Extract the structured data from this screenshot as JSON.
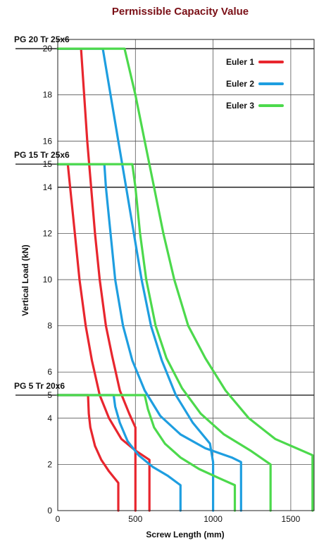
{
  "chart_data": {
    "type": "line",
    "title": "Permissible Capacity Value",
    "xlabel": "Screw Length (mm)",
    "ylabel": "Vertical Load (kN)",
    "xlim": [
      0,
      1650
    ],
    "ylim": [
      0,
      20.4
    ],
    "x_ticks": [
      0,
      500,
      1000,
      1500
    ],
    "y_ticks": [
      0,
      2,
      4,
      5,
      6,
      8,
      10,
      12,
      14,
      15,
      16,
      18,
      20
    ],
    "grid": true,
    "legend_position": "top-right",
    "screw_types": [
      {
        "label": "PG 20 Tr 25x6",
        "capacity": 20
      },
      {
        "label": "PG 15 Tr 25x6",
        "capacity": 15
      },
      {
        "label": "PG 5  Tr 20x6",
        "capacity": 5
      }
    ],
    "series": [
      {
        "name": "Euler 1",
        "color": "#e8262e",
        "screw": "PG 20 Tr 25x6",
        "x": [
          0,
          150,
          170,
          190,
          215,
          240,
          270,
          310,
          350,
          400,
          460,
          500,
          500
        ],
        "y": [
          20,
          20,
          18,
          16,
          14,
          12,
          10,
          8,
          6.7,
          5.2,
          4.2,
          3.6,
          0
        ]
      },
      {
        "name": "Euler 2",
        "color": "#1e9ee0",
        "screw": "PG 20 Tr 25x6",
        "x": [
          0,
          290,
          340,
          390,
          440,
          490,
          540,
          600,
          670,
          760,
          870,
          980,
          1000,
          1000
        ],
        "y": [
          20,
          20,
          18,
          16,
          14,
          12,
          10,
          8,
          6.5,
          5.0,
          3.8,
          2.9,
          2.1,
          0
        ]
      },
      {
        "name": "Euler 3",
        "color": "#4cd94c",
        "screw": "PG 20 Tr 25x6",
        "x": [
          0,
          430,
          500,
          560,
          620,
          680,
          750,
          840,
          950,
          1080,
          1230,
          1400,
          1640,
          1640
        ],
        "y": [
          20,
          20,
          18,
          16,
          14,
          12,
          10,
          8,
          6.6,
          5.2,
          4.0,
          3.1,
          2.4,
          0
        ]
      },
      {
        "name": "Euler 1",
        "color": "#e8262e",
        "screw": "PG 15 Tr 25x6",
        "x": [
          0,
          65,
          80,
          110,
          140,
          180,
          220,
          270,
          330,
          410,
          500,
          590,
          590
        ],
        "y": [
          15,
          15,
          14,
          12,
          10,
          8,
          6.5,
          5,
          4,
          3.1,
          2.6,
          2.2,
          0
        ]
      },
      {
        "name": "Euler 2",
        "color": "#1e9ee0",
        "screw": "PG 15 Tr 25x6",
        "x": [
          0,
          300,
          310,
          340,
          370,
          420,
          480,
          560,
          660,
          790,
          950,
          1120,
          1180,
          1180
        ],
        "y": [
          15,
          15,
          14,
          12,
          10,
          8,
          6.5,
          5.2,
          4.1,
          3.3,
          2.7,
          2.3,
          2.1,
          0
        ]
      },
      {
        "name": "Euler 3",
        "color": "#4cd94c",
        "screw": "PG 15 Tr 25x6",
        "x": [
          0,
          480,
          500,
          530,
          570,
          630,
          700,
          800,
          920,
          1070,
          1240,
          1370,
          1370
        ],
        "y": [
          15,
          15,
          14,
          12,
          10,
          8,
          6.6,
          5.3,
          4.2,
          3.3,
          2.6,
          2.0,
          0
        ]
      },
      {
        "name": "Euler 1",
        "color": "#e8262e",
        "screw": "PG 5  Tr 20x6",
        "x": [
          0,
          195,
          200,
          210,
          240,
          280,
          330,
          390,
          390
        ],
        "y": [
          5,
          5,
          4.2,
          3.6,
          2.8,
          2.2,
          1.7,
          1.2,
          0
        ]
      },
      {
        "name": "Euler 2",
        "color": "#1e9ee0",
        "screw": "PG 5  Tr 20x6",
        "x": [
          0,
          360,
          370,
          400,
          450,
          520,
          610,
          710,
          790,
          790
        ],
        "y": [
          5,
          5,
          4.5,
          3.8,
          3.0,
          2.4,
          1.9,
          1.5,
          1.1,
          0
        ]
      },
      {
        "name": "Euler 3",
        "color": "#4cd94c",
        "screw": "PG 5  Tr 20x6",
        "x": [
          0,
          560,
          580,
          620,
          690,
          790,
          910,
          1040,
          1140,
          1140
        ],
        "y": [
          5,
          5,
          4.4,
          3.6,
          2.9,
          2.3,
          1.8,
          1.4,
          1.1,
          0
        ]
      }
    ],
    "legend": [
      {
        "name": "Euler 1",
        "color": "#e8262e"
      },
      {
        "name": "Euler 2",
        "color": "#1e9ee0"
      },
      {
        "name": "Euler 3",
        "color": "#4cd94c"
      }
    ]
  }
}
